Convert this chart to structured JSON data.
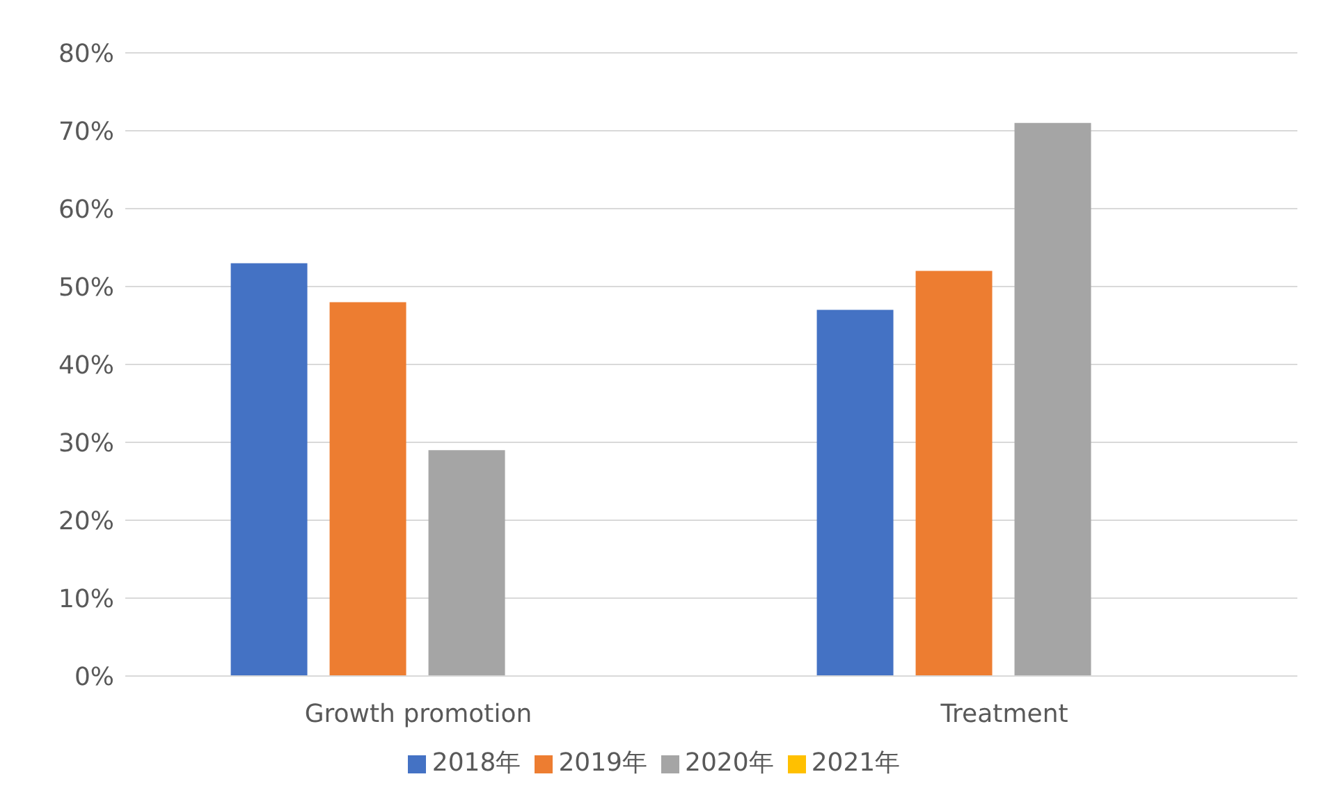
{
  "chart_data": {
    "type": "bar",
    "categories": [
      "Growth promotion",
      "Treatment"
    ],
    "series": [
      {
        "name": "2018年",
        "color": "#4472c4",
        "values": [
          53,
          47
        ]
      },
      {
        "name": "2019年",
        "color": "#ed7d31",
        "values": [
          48,
          52
        ]
      },
      {
        "name": "2020年",
        "color": "#a5a5a5",
        "values": [
          29,
          71
        ]
      },
      {
        "name": "2021年",
        "color": "#ffc000",
        "values": [
          null,
          null
        ]
      }
    ],
    "ylim": [
      0,
      80
    ],
    "yticks": [
      {
        "value": 0,
        "label": "0%"
      },
      {
        "value": 10,
        "label": "10%"
      },
      {
        "value": 20,
        "label": "20%"
      },
      {
        "value": 30,
        "label": "30%"
      },
      {
        "value": 40,
        "label": "40%"
      },
      {
        "value": 50,
        "label": "50%"
      },
      {
        "value": 60,
        "label": "60%"
      },
      {
        "value": 70,
        "label": "70%"
      },
      {
        "value": 80,
        "label": "80%"
      }
    ],
    "grid": "y",
    "legend": "bottom"
  }
}
